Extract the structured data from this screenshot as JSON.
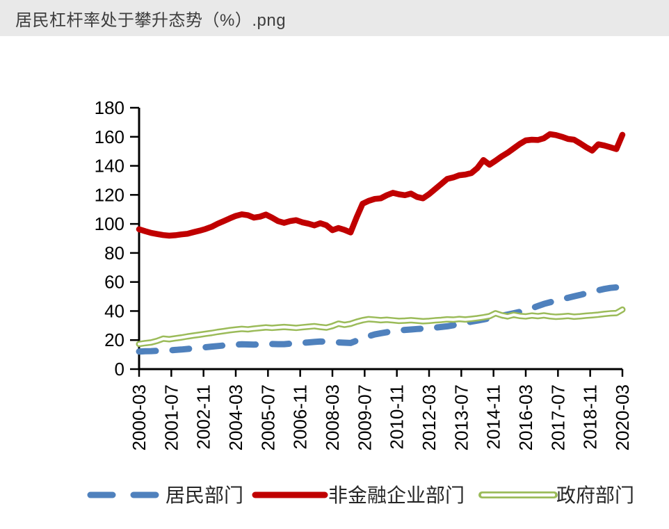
{
  "window": {
    "title": "居民杠杆率处于攀升态势（%）.png"
  },
  "colors": {
    "header_bg": "#e9e9e9",
    "header_text": "#3d3d3d",
    "axis": "#000000",
    "tick_label": "#000000",
    "legend_text": "#262626",
    "household": "#4f81bd",
    "corporate": "#c00000",
    "government": "#9bbb59",
    "government_core": "#ffffff",
    "background": "#ffffff"
  },
  "chart_data": {
    "type": "line",
    "title": "",
    "xlabel": "",
    "ylabel": "",
    "ylim": [
      0,
      180
    ],
    "ytick_step": 20,
    "grid": false,
    "legend_position": "bottom",
    "x_tick_labels": [
      "2000-03",
      "2001-07",
      "2002-11",
      "2004-03",
      "2005-07",
      "2006-11",
      "2008-03",
      "2009-07",
      "2010-11",
      "2012-03",
      "2013-07",
      "2014-11",
      "2016-03",
      "2017-07",
      "2018-11",
      "2020-03"
    ],
    "x": [
      "2000-03",
      "2000-06",
      "2000-09",
      "2000-12",
      "2001-03",
      "2001-06",
      "2001-09",
      "2001-12",
      "2002-03",
      "2002-06",
      "2002-09",
      "2002-12",
      "2003-03",
      "2003-06",
      "2003-09",
      "2003-12",
      "2004-03",
      "2004-06",
      "2004-09",
      "2004-12",
      "2005-03",
      "2005-06",
      "2005-09",
      "2005-12",
      "2006-03",
      "2006-06",
      "2006-09",
      "2006-12",
      "2007-03",
      "2007-06",
      "2007-09",
      "2007-12",
      "2008-03",
      "2008-06",
      "2008-09",
      "2008-12",
      "2009-03",
      "2009-06",
      "2009-09",
      "2009-12",
      "2010-03",
      "2010-06",
      "2010-09",
      "2010-12",
      "2011-03",
      "2011-06",
      "2011-09",
      "2011-12",
      "2012-03",
      "2012-06",
      "2012-09",
      "2012-12",
      "2013-03",
      "2013-06",
      "2013-09",
      "2013-12",
      "2014-03",
      "2014-06",
      "2014-09",
      "2014-12",
      "2015-03",
      "2015-06",
      "2015-09",
      "2015-12",
      "2016-03",
      "2016-06",
      "2016-09",
      "2016-12",
      "2017-03",
      "2017-06",
      "2017-09",
      "2017-12",
      "2018-03",
      "2018-06",
      "2018-09",
      "2018-12",
      "2019-03",
      "2019-06",
      "2019-09",
      "2019-12",
      "2020-03"
    ],
    "series": [
      {
        "name": "居民部门",
        "style": "dashed",
        "color": "#4f81bd",
        "values": [
          12.1,
          12.3,
          12.4,
          12.6,
          12.7,
          12.9,
          13.2,
          13.5,
          13.9,
          14.3,
          14.7,
          15.1,
          15.5,
          15.9,
          16.3,
          16.7,
          16.9,
          17.1,
          17.0,
          16.9,
          17.0,
          17.2,
          17.3,
          17.2,
          17.2,
          17.5,
          17.8,
          18.1,
          18.4,
          18.7,
          19.0,
          18.9,
          18.6,
          18.4,
          18.2,
          18.0,
          19.6,
          21.3,
          22.7,
          23.9,
          24.7,
          25.4,
          26.1,
          26.7,
          27.0,
          27.3,
          27.6,
          27.9,
          28.2,
          28.6,
          29.0,
          29.5,
          30.2,
          31.0,
          31.8,
          32.7,
          33.4,
          34.2,
          35.0,
          35.9,
          36.7,
          37.6,
          38.5,
          39.4,
          40.6,
          42.0,
          43.4,
          44.9,
          46.0,
          47.2,
          48.3,
          49.1,
          50.1,
          51.1,
          52.2,
          53.3,
          54.3,
          55.2,
          55.9,
          56.3,
          57.7
        ]
      },
      {
        "name": "非金融企业部门",
        "style": "solid",
        "color": "#c00000",
        "values": [
          96.3,
          95.0,
          93.8,
          93.0,
          92.3,
          91.9,
          92.2,
          92.8,
          93.2,
          94.3,
          95.3,
          96.5,
          98.0,
          100.1,
          101.9,
          103.8,
          105.5,
          106.6,
          106.0,
          104.3,
          105.0,
          106.4,
          104.3,
          101.9,
          100.7,
          101.9,
          102.6,
          101.1,
          100.2,
          99.0,
          100.5,
          99.1,
          95.7,
          97.2,
          95.9,
          94.1,
          104.5,
          113.9,
          115.9,
          117.2,
          117.6,
          119.8,
          121.4,
          120.4,
          119.8,
          120.9,
          118.6,
          117.6,
          120.5,
          124.0,
          127.5,
          131.0,
          132.0,
          133.5,
          134.0,
          135.0,
          138.5,
          144.0,
          140.8,
          143.5,
          146.5,
          149.0,
          152.0,
          155.0,
          157.5,
          158.0,
          157.8,
          159.0,
          161.8,
          161.2,
          160.0,
          158.5,
          158.0,
          155.5,
          152.8,
          150.5,
          154.8,
          154.0,
          152.8,
          151.5,
          161.4
        ]
      },
      {
        "name": "政府部门",
        "style": "outlined",
        "color": "#9bbb59",
        "values": [
          17.3,
          17.9,
          18.4,
          19.5,
          21.0,
          20.6,
          21.2,
          21.8,
          22.5,
          23.1,
          23.7,
          24.3,
          24.9,
          25.6,
          26.2,
          26.8,
          27.3,
          27.7,
          27.4,
          27.9,
          28.3,
          28.7,
          28.4,
          28.7,
          29.0,
          28.7,
          28.4,
          28.8,
          29.2,
          29.6,
          29.0,
          28.6,
          29.7,
          31.3,
          30.5,
          31.2,
          32.6,
          33.7,
          34.4,
          34.1,
          33.7,
          34.0,
          33.6,
          33.2,
          33.4,
          33.7,
          33.3,
          33.0,
          33.2,
          33.6,
          33.9,
          34.3,
          34.1,
          34.5,
          34.2,
          34.6,
          35.1,
          35.7,
          36.5,
          38.5,
          37.1,
          36.3,
          37.4,
          36.6,
          36.3,
          36.9,
          36.5,
          37.0,
          36.4,
          36.0,
          36.3,
          36.6,
          36.1,
          36.4,
          36.8,
          37.1,
          37.5,
          38.0,
          38.4,
          38.6,
          41.0
        ]
      }
    ]
  }
}
